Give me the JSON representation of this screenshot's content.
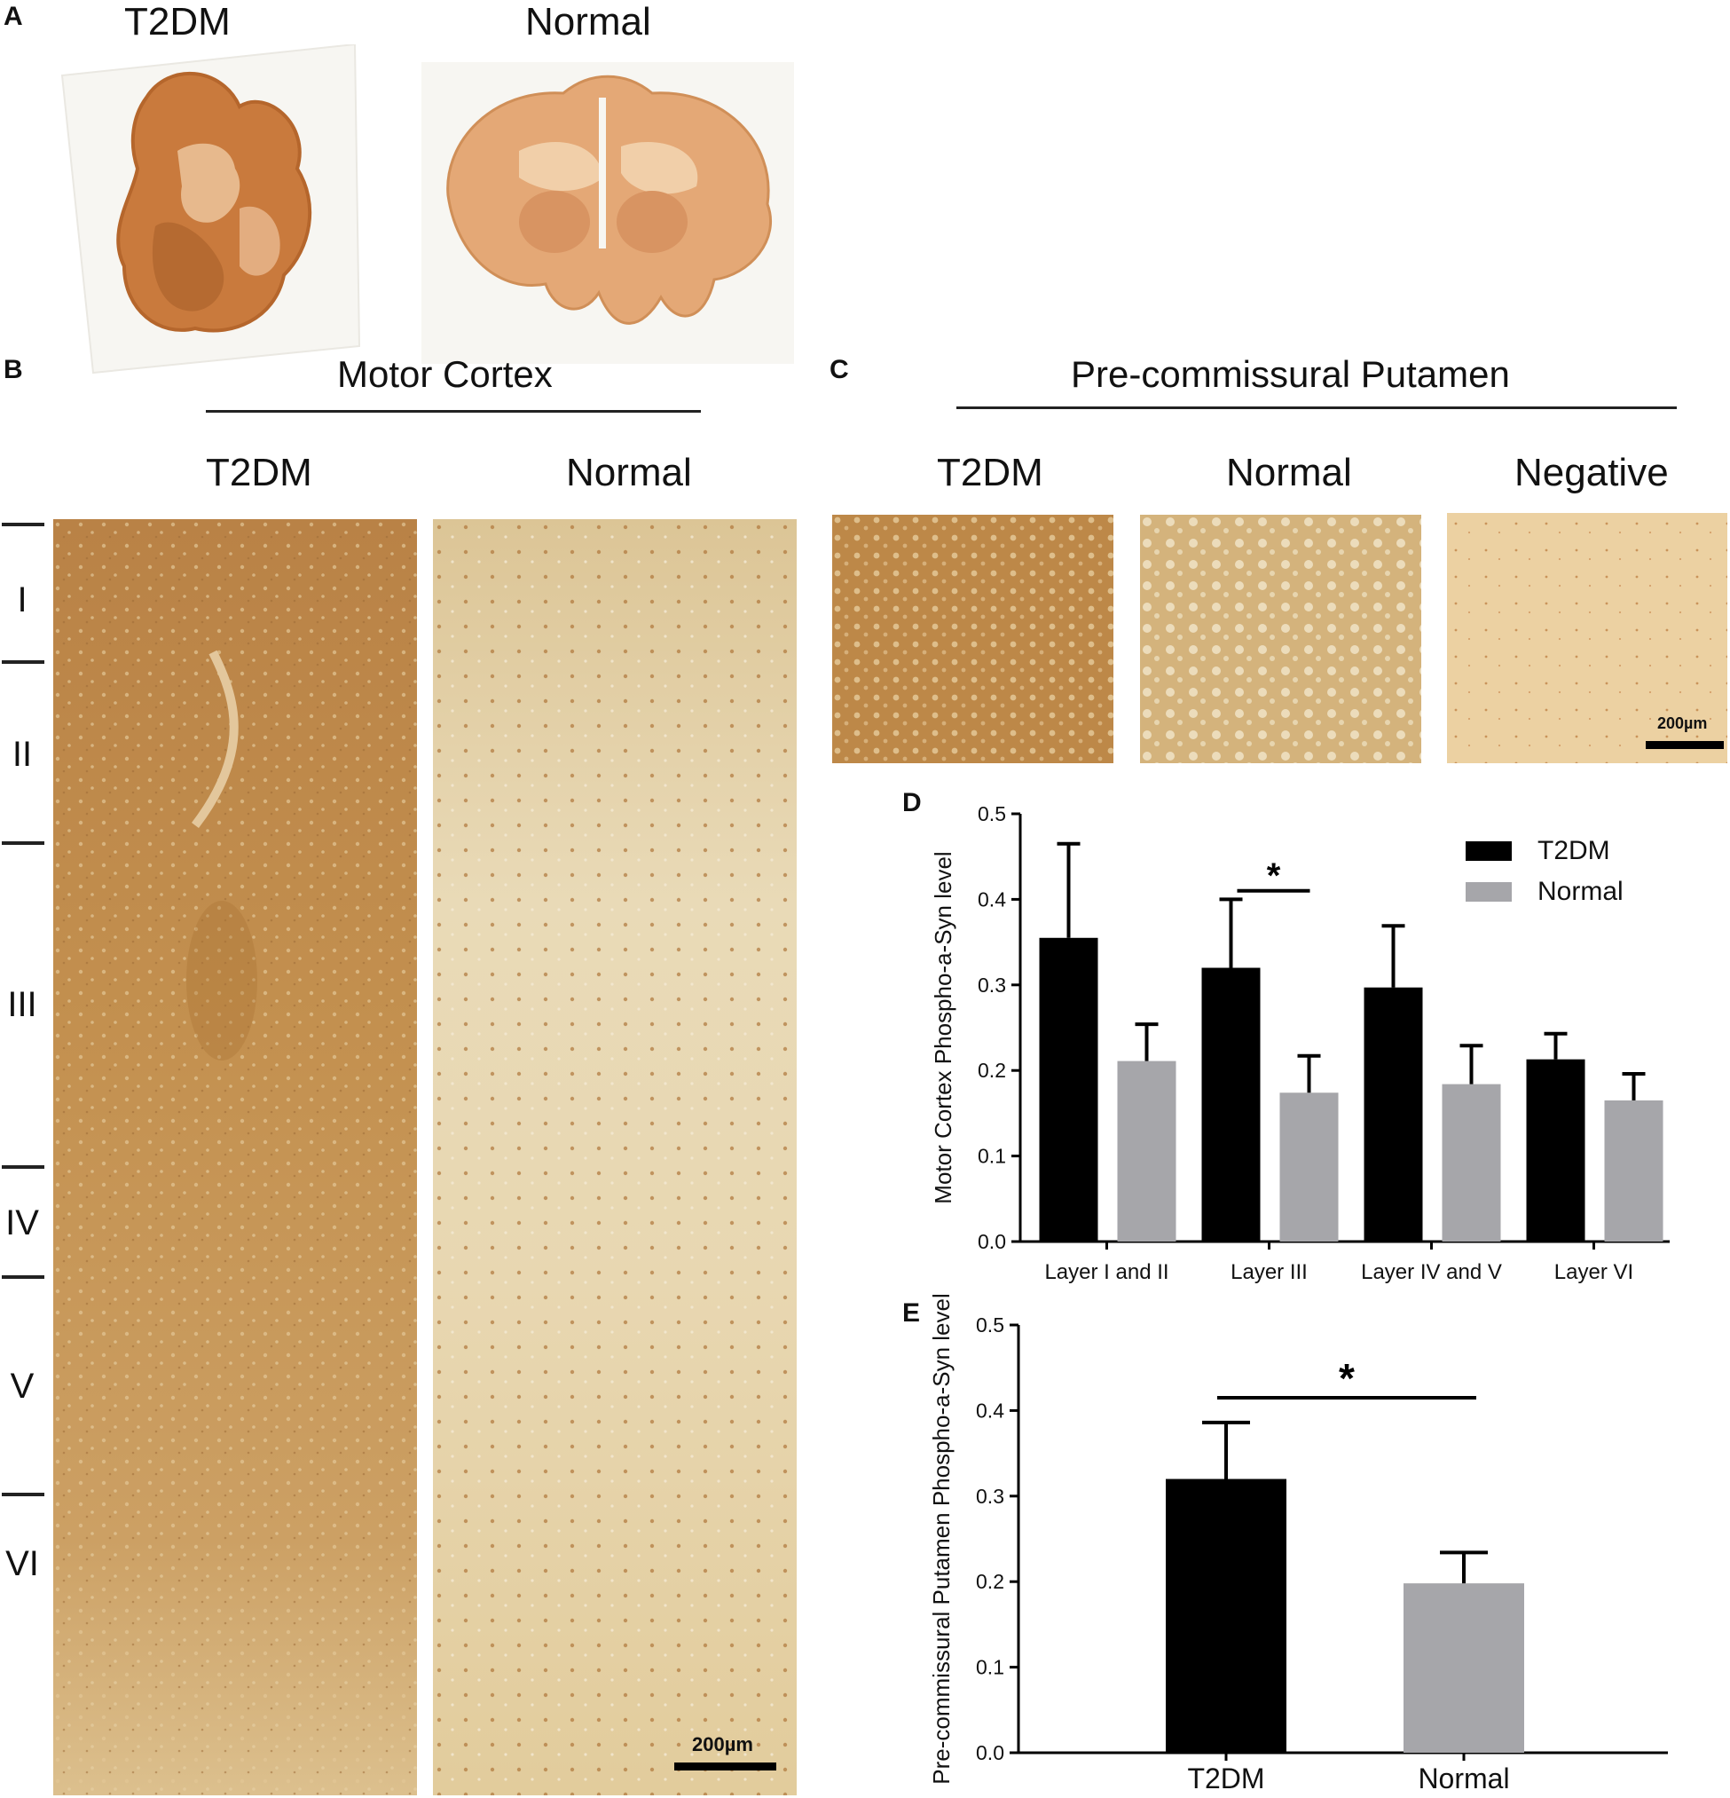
{
  "panel_a": {
    "label": "A",
    "col_titles": [
      "T2DM",
      "Normal"
    ]
  },
  "panel_b": {
    "label": "B",
    "title": "Motor Cortex",
    "col_titles": [
      "T2DM",
      "Normal"
    ],
    "layers": [
      "I",
      "II",
      "III",
      "IV",
      "V",
      "VI"
    ],
    "scale_bar": "200µm"
  },
  "panel_c": {
    "label": "C",
    "title": "Pre-commissural Putamen",
    "col_titles": [
      "T2DM",
      "Normal",
      "Negative"
    ],
    "scale_bar": "200µm"
  },
  "colors": {
    "t2dm": "#000000",
    "normal": "#a6a6aa",
    "stain_dark": "#b07a3c",
    "stain_light": "#e8d3a8"
  },
  "chart_data": [
    {
      "panel": "D",
      "type": "bar",
      "categories": [
        "Layer I and II",
        "Layer  III",
        "Layer IV and V",
        "Layer VI"
      ],
      "ylabel": "Motor Cortex Phospho-a-Syn level",
      "ylim": [
        0,
        0.5
      ],
      "yticks": [
        "0.0",
        "0.1",
        "0.2",
        "0.3",
        "0.4",
        "0.5"
      ],
      "series": [
        {
          "name": "T2DM",
          "values": [
            0.355,
            0.32,
            0.297,
            0.213
          ],
          "errors": [
            0.11,
            0.08,
            0.072,
            0.03
          ]
        },
        {
          "name": "Normal",
          "values": [
            0.211,
            0.174,
            0.184,
            0.165
          ],
          "errors": [
            0.043,
            0.043,
            0.045,
            0.031
          ]
        }
      ],
      "significance": [
        {
          "category": "Layer  III",
          "label": "*"
        }
      ],
      "legend": "top-right"
    },
    {
      "panel": "E",
      "type": "bar",
      "categories": [
        "T2DM",
        "Normal"
      ],
      "ylabel": "Pre-commissural Putamen Phospho-a-Syn level",
      "ylim": [
        0,
        0.5
      ],
      "yticks": [
        "0.0",
        "0.1",
        "0.2",
        "0.3",
        "0.4",
        "0.5"
      ],
      "values": [
        0.32,
        0.198
      ],
      "errors": [
        0.066,
        0.036
      ],
      "significance": [
        {
          "between": [
            "T2DM",
            "Normal"
          ],
          "label": "*"
        }
      ]
    }
  ]
}
